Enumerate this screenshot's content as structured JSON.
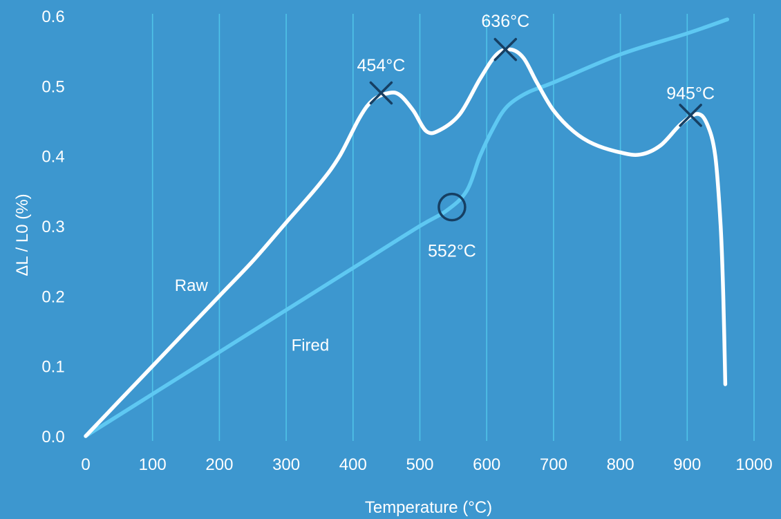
{
  "chart_data": {
    "type": "line",
    "title": "",
    "xlabel": "Temperature (°C)",
    "ylabel": "ΔL / L0 (%)",
    "xlim": [
      0,
      1000
    ],
    "ylim": [
      0,
      0.6
    ],
    "x_ticks": [
      0,
      100,
      200,
      300,
      400,
      500,
      600,
      700,
      800,
      900,
      1000
    ],
    "y_ticks": [
      0.0,
      0.1,
      0.2,
      0.3,
      0.4,
      0.5,
      0.6
    ],
    "y_tick_labels": [
      "0.0",
      "0.1",
      "0.2",
      "0.3",
      "0.4",
      "0.5",
      "0.6"
    ],
    "grid": "vertical",
    "series": [
      {
        "name": "Raw",
        "color": "#ffffff",
        "points": [
          [
            0,
            0.0
          ],
          [
            50,
            0.05
          ],
          [
            100,
            0.1
          ],
          [
            150,
            0.15
          ],
          [
            200,
            0.2
          ],
          [
            250,
            0.25
          ],
          [
            300,
            0.305
          ],
          [
            350,
            0.36
          ],
          [
            380,
            0.4
          ],
          [
            410,
            0.455
          ],
          [
            430,
            0.48
          ],
          [
            454,
            0.49
          ],
          [
            470,
            0.487
          ],
          [
            490,
            0.465
          ],
          [
            510,
            0.435
          ],
          [
            530,
            0.437
          ],
          [
            560,
            0.46
          ],
          [
            590,
            0.51
          ],
          [
            615,
            0.545
          ],
          [
            636,
            0.552
          ],
          [
            655,
            0.54
          ],
          [
            675,
            0.505
          ],
          [
            700,
            0.465
          ],
          [
            730,
            0.435
          ],
          [
            760,
            0.417
          ],
          [
            800,
            0.405
          ],
          [
            830,
            0.402
          ],
          [
            860,
            0.415
          ],
          [
            890,
            0.445
          ],
          [
            915,
            0.46
          ],
          [
            930,
            0.445
          ],
          [
            942,
            0.4
          ],
          [
            950,
            0.3
          ],
          [
            954,
            0.2
          ],
          [
            957,
            0.074
          ]
        ],
        "label_position": [
          158,
          0.215
        ]
      },
      {
        "name": "Fired",
        "color": "#5ec8f2",
        "points": [
          [
            0,
            0.0
          ],
          [
            100,
            0.06
          ],
          [
            200,
            0.12
          ],
          [
            300,
            0.18
          ],
          [
            400,
            0.24
          ],
          [
            500,
            0.3
          ],
          [
            540,
            0.322
          ],
          [
            570,
            0.35
          ],
          [
            590,
            0.4
          ],
          [
            610,
            0.44
          ],
          [
            630,
            0.47
          ],
          [
            660,
            0.49
          ],
          [
            700,
            0.505
          ],
          [
            800,
            0.545
          ],
          [
            900,
            0.575
          ],
          [
            960,
            0.595
          ]
        ],
        "label_position": [
          336,
          0.13
        ]
      }
    ],
    "annotations": [
      {
        "label": "454°C",
        "marker": "x",
        "x": 442,
        "y": 0.49,
        "label_x": 442,
        "label_y": 0.53
      },
      {
        "label": "636°C",
        "marker": "x",
        "x": 628,
        "y": 0.552,
        "label_x": 628,
        "label_y": 0.593
      },
      {
        "label": "945°C",
        "marker": "x",
        "x": 905,
        "y": 0.458,
        "label_x": 905,
        "label_y": 0.49
      },
      {
        "label": "552°C",
        "marker": "circle",
        "x": 548,
        "y": 0.327,
        "label_x": 548,
        "label_y": 0.265
      }
    ],
    "colors": {
      "background": "#3d97cf",
      "grid": "#4fc3e8",
      "marker": "#163f63",
      "text": "#ffffff"
    }
  }
}
